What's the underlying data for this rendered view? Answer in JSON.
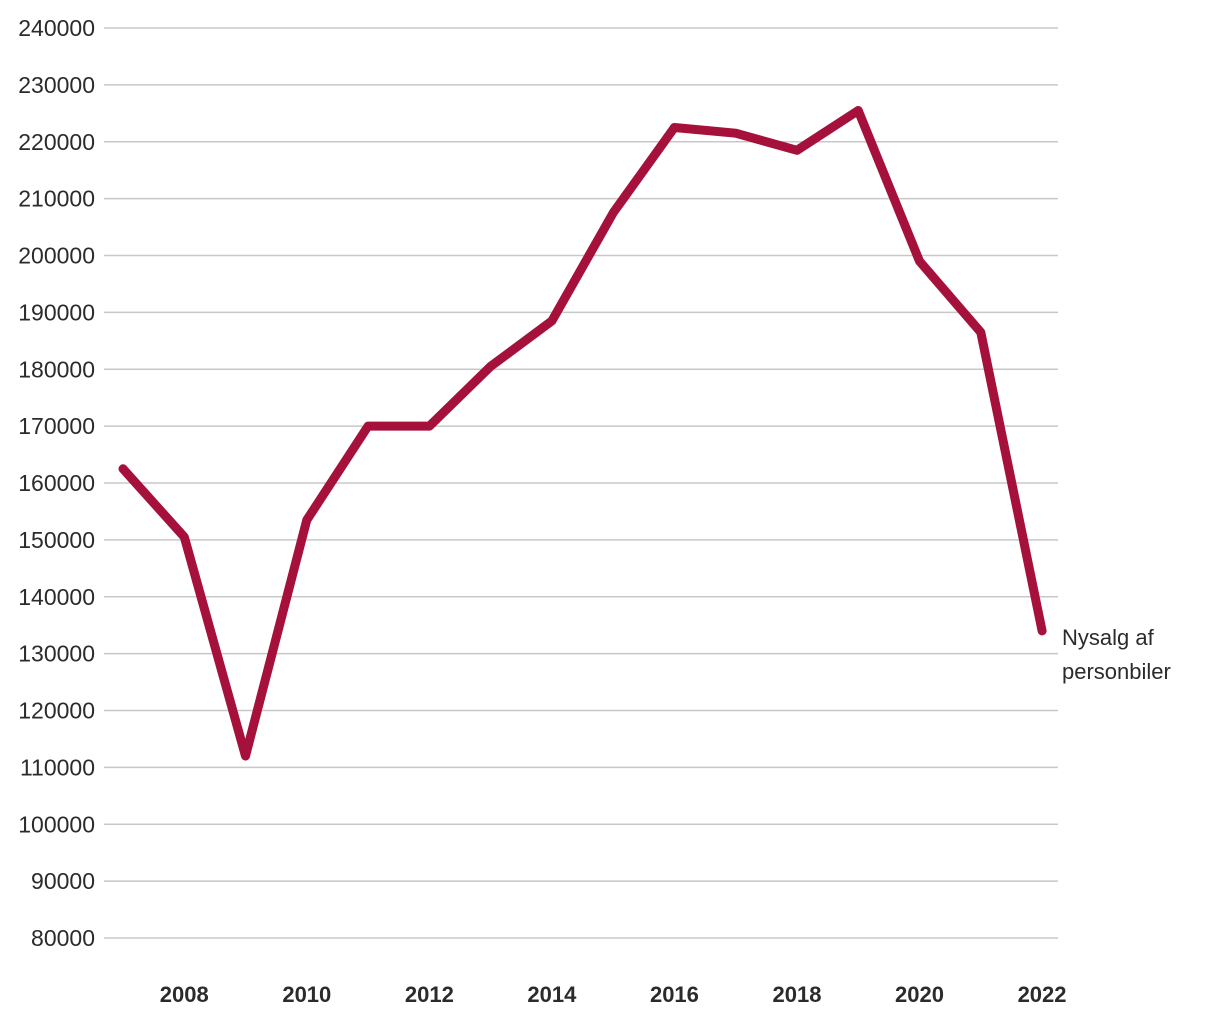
{
  "chart_data": {
    "type": "line",
    "title": "",
    "series_label": "Nysalg af personbiler",
    "x": [
      2007,
      2008,
      2009,
      2010,
      2011,
      2012,
      2013,
      2014,
      2015,
      2016,
      2017,
      2018,
      2019,
      2020,
      2021,
      2022
    ],
    "values": [
      162500,
      150500,
      112000,
      153500,
      170000,
      170000,
      180500,
      188500,
      207500,
      222500,
      221500,
      218500,
      225500,
      199000,
      186500,
      134000
    ],
    "x_tick_labels": [
      "2008",
      "2010",
      "2012",
      "2014",
      "2016",
      "2018",
      "2020",
      "2022"
    ],
    "x_tick_years": [
      2008,
      2010,
      2012,
      2014,
      2016,
      2018,
      2020,
      2022
    ],
    "y_tick_labels": [
      "240000",
      "230000",
      "220000",
      "210000",
      "200000",
      "190000",
      "180000",
      "170000",
      "160000",
      "150000",
      "140000",
      "130000",
      "120000",
      "110000",
      "100000",
      "90000",
      "80000"
    ],
    "y_tick_values": [
      240000,
      230000,
      220000,
      210000,
      200000,
      190000,
      180000,
      170000,
      160000,
      150000,
      140000,
      130000,
      120000,
      110000,
      100000,
      90000,
      80000
    ],
    "ylim": [
      80000,
      240000
    ],
    "grid": "horizontal",
    "legend_position": "right-annotation",
    "colors": {
      "line": "#A6113C",
      "grid": "#C8C8C8",
      "text": "#2B2B2B",
      "background": "#FFFFFF"
    },
    "line_width": 9
  }
}
